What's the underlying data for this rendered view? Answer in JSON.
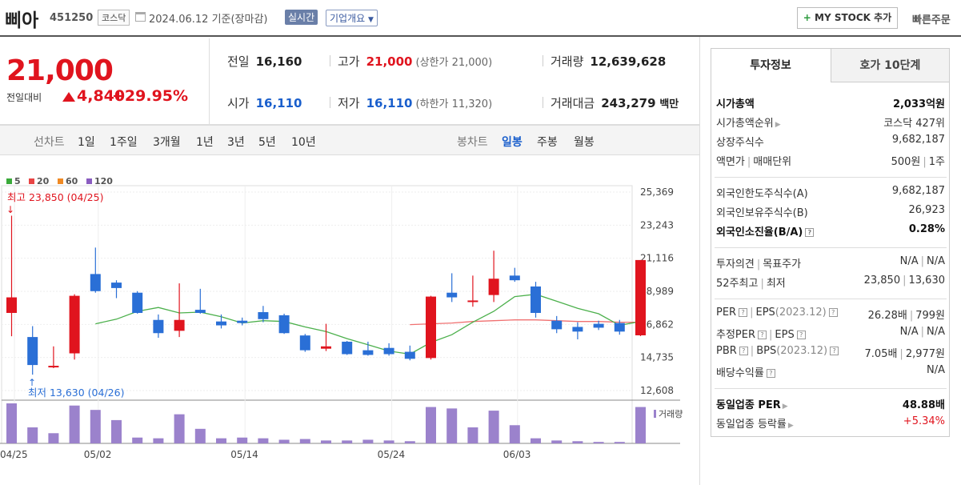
{
  "header": {
    "name": "삐아",
    "code": "451250",
    "market": "코스닥",
    "date_text": "2024.06.12  기준(장마감)",
    "realtime_label": "실시간",
    "company_label": "기업개요",
    "mystock_label": "MY STOCK 추가",
    "quick_order_label": "빠른주문"
  },
  "price": {
    "current": "21,000",
    "change_label": "전일대비",
    "change_value": "4,840",
    "change_pct": "+29.95%"
  },
  "quote": {
    "prev_label": "전일",
    "prev": "16,160",
    "high_label": "고가",
    "high": "21,000",
    "upper_limit": "(상한가 21,000)",
    "volume_label": "거래량",
    "volume": "12,639,628",
    "open_label": "시가",
    "open": "16,110",
    "low_label": "저가",
    "low": "16,110",
    "lower_limit": "(하한가 11,320)",
    "amount_label": "거래대금",
    "amount": "243,279",
    "amount_unit": "백만"
  },
  "line_chart_tabs": {
    "title": "선차트",
    "items": [
      "1일",
      "1주일",
      "3개월",
      "1년",
      "3년",
      "5년",
      "10년"
    ]
  },
  "candle_tabs": {
    "title": "봉차트",
    "items": [
      "일봉",
      "주봉",
      "월봉"
    ],
    "active": 0
  },
  "chart_data": {
    "type": "candlestick",
    "legend": [
      {
        "name": "5",
        "color": "#3aaa3a"
      },
      {
        "name": "20",
        "color": "#e84444"
      },
      {
        "name": "60",
        "color": "#f08a24"
      },
      {
        "name": "120",
        "color": "#8a5cc0"
      }
    ],
    "y_ticks": [
      25369,
      23243,
      21116,
      18989,
      16862,
      14735,
      12608
    ],
    "ylim": [
      12608,
      25369
    ],
    "x_ticks": [
      {
        "label": "04/25",
        "index": 0
      },
      {
        "label": "05/02",
        "index": 4
      },
      {
        "label": "05/14",
        "index": 11
      },
      {
        "label": "05/24",
        "index": 18
      },
      {
        "label": "06/03",
        "index": 24
      }
    ],
    "high_annotation": "최고 23,850 (04/25)",
    "low_annotation": "최저 13,630 (04/26)",
    "volume_label": "거래량",
    "candles": [
      {
        "o": 17600,
        "h": 23850,
        "l": 16100,
        "c": 18600
      },
      {
        "o": 16050,
        "h": 16750,
        "l": 13630,
        "c": 14250
      },
      {
        "o": 14150,
        "h": 15450,
        "l": 14050,
        "c": 14200
      },
      {
        "o": 15000,
        "h": 18800,
        "l": 14600,
        "c": 18700
      },
      {
        "o": 20100,
        "h": 21800,
        "l": 18900,
        "c": 19000
      },
      {
        "o": 19550,
        "h": 19700,
        "l": 18550,
        "c": 19200
      },
      {
        "o": 18900,
        "h": 19000,
        "l": 17550,
        "c": 17600
      },
      {
        "o": 17150,
        "h": 17500,
        "l": 16000,
        "c": 16300
      },
      {
        "o": 16450,
        "h": 19500,
        "l": 16050,
        "c": 17150
      },
      {
        "o": 17800,
        "h": 19150,
        "l": 17550,
        "c": 17600
      },
      {
        "o": 17050,
        "h": 17500,
        "l": 16600,
        "c": 16800
      },
      {
        "o": 17100,
        "h": 17300,
        "l": 16800,
        "c": 16950
      },
      {
        "o": 17650,
        "h": 18050,
        "l": 17000,
        "c": 17200
      },
      {
        "o": 17450,
        "h": 17550,
        "l": 16250,
        "c": 16300
      },
      {
        "o": 16150,
        "h": 16250,
        "l": 15100,
        "c": 15200
      },
      {
        "o": 15300,
        "h": 16900,
        "l": 15150,
        "c": 15450
      },
      {
        "o": 15750,
        "h": 15800,
        "l": 14900,
        "c": 14950
      },
      {
        "o": 15200,
        "h": 15750,
        "l": 14850,
        "c": 14900
      },
      {
        "o": 15350,
        "h": 15650,
        "l": 14850,
        "c": 14950
      },
      {
        "o": 15100,
        "h": 15500,
        "l": 14550,
        "c": 14650
      },
      {
        "o": 14700,
        "h": 18700,
        "l": 14600,
        "c": 18650
      },
      {
        "o": 18900,
        "h": 20150,
        "l": 18300,
        "c": 18600
      },
      {
        "o": 18300,
        "h": 20000,
        "l": 18000,
        "c": 18400
      },
      {
        "o": 18750,
        "h": 21600,
        "l": 18300,
        "c": 19800
      },
      {
        "o": 20000,
        "h": 20500,
        "l": 19600,
        "c": 19700
      },
      {
        "o": 19300,
        "h": 19600,
        "l": 17300,
        "c": 17600
      },
      {
        "o": 17100,
        "h": 17400,
        "l": 16300,
        "c": 16550
      },
      {
        "o": 16700,
        "h": 17000,
        "l": 15900,
        "c": 16400
      },
      {
        "o": 16900,
        "h": 17100,
        "l": 16500,
        "c": 16650
      },
      {
        "o": 16950,
        "h": 17150,
        "l": 16200,
        "c": 16400
      },
      {
        "o": 16160,
        "h": 21000,
        "l": 16110,
        "c": 21000
      }
    ],
    "ma5": [
      null,
      null,
      null,
      null,
      16900,
      17200,
      17700,
      17950,
      17600,
      17650,
      17350,
      16950,
      17100,
      17050,
      16700,
      16400,
      15950,
      15550,
      15150,
      14950,
      15700,
      16200,
      17000,
      17700,
      18650,
      18800,
      18350,
      17900,
      17550,
      16800,
      17050
    ],
    "ma20": [
      null,
      null,
      null,
      null,
      null,
      null,
      null,
      null,
      null,
      null,
      null,
      null,
      null,
      null,
      null,
      null,
      null,
      null,
      null,
      16850,
      16900,
      16950,
      17050,
      17100,
      17150,
      17150,
      17100,
      17050,
      17050,
      17000,
      17000
    ],
    "volume": [
      55,
      22,
      14,
      52,
      46,
      32,
      8,
      7,
      40,
      20,
      7,
      8,
      7,
      5,
      6,
      4,
      4,
      5,
      4,
      3,
      50,
      48,
      22,
      45,
      25,
      7,
      4,
      3,
      2,
      2,
      50
    ]
  },
  "info": {
    "tab_active": "투자정보",
    "tab_other": "호가 10단계",
    "rows1": [
      {
        "k": "시가총액",
        "v": "2,033억원"
      },
      {
        "k": "시가총액순위",
        "v": "코스닥 427위"
      },
      {
        "k": "상장주식수",
        "v": "9,682,187"
      },
      {
        "k1": "액면가",
        "k2": "매매단위",
        "v1": "500원",
        "v2": "1주"
      }
    ],
    "rows2": [
      {
        "k": "외국인한도주식수(A)",
        "v": "9,682,187"
      },
      {
        "k": "외국인보유주식수(B)",
        "v": "26,923"
      },
      {
        "k": "외국인소진율(B/A)",
        "v": "0.28%"
      }
    ],
    "rows3": [
      {
        "k1": "투자의견",
        "k2": "목표주가",
        "v1": "N/A",
        "v2": "N/A"
      },
      {
        "k1": "52주최고",
        "k2": "최저",
        "v1": "23,850",
        "v2": "13,630"
      }
    ],
    "rows4": [
      {
        "k1": "PER",
        "k2": "EPS",
        "k2b": "(2023.12)",
        "v1": "26.28배",
        "v2": "799원"
      },
      {
        "k1": "추정PER",
        "k2": "EPS",
        "v1": "N/A",
        "v2": "N/A"
      },
      {
        "k1": "PBR",
        "k2": "BPS",
        "k2b": "(2023.12)",
        "v1": "7.05배",
        "v2": "2,977원"
      },
      {
        "k": "배당수익률",
        "v": "N/A"
      }
    ],
    "rows5": [
      {
        "k": "동일업종 PER",
        "v": "48.88배"
      },
      {
        "k": "동일업종 등락률",
        "v": "+5.34%"
      }
    ]
  }
}
